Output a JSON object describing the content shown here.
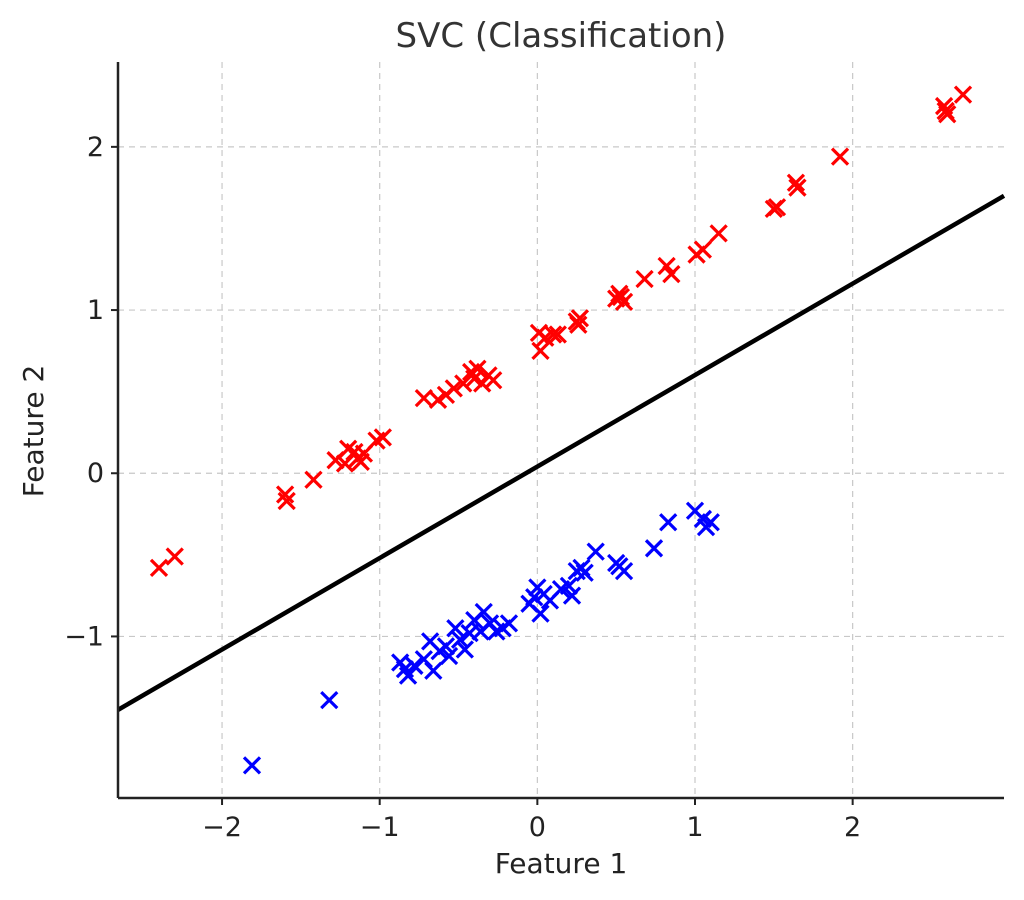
{
  "chart_data": {
    "type": "scatter",
    "title": "SVC (Classification)",
    "xlabel": "Feature 1",
    "ylabel": "Feature 2",
    "xlim": [
      -2.66,
      2.96
    ],
    "ylim": [
      -1.99,
      2.52
    ],
    "xticks": [
      -2,
      -1,
      0,
      1,
      2
    ],
    "yticks": [
      -1,
      0,
      1,
      2
    ],
    "xtick_labels": [
      "−2",
      "−1",
      "0",
      "1",
      "2"
    ],
    "ytick_labels": [
      "−1",
      "0",
      "1",
      "2"
    ],
    "grid": true,
    "marker": "x",
    "decision_boundary": {
      "x": [
        -2.66,
        2.96
      ],
      "y": [
        -1.45,
        1.7
      ],
      "color": "#000000"
    },
    "series": [
      {
        "color": "#ff0000",
        "points": [
          [
            -2.4,
            -0.58
          ],
          [
            -2.3,
            -0.51
          ],
          [
            -1.6,
            -0.13
          ],
          [
            -1.59,
            -0.17
          ],
          [
            -1.42,
            -0.04
          ],
          [
            -1.28,
            0.08
          ],
          [
            -1.22,
            0.06
          ],
          [
            -1.2,
            0.15
          ],
          [
            -1.16,
            0.13
          ],
          [
            -1.14,
            0.09
          ],
          [
            -1.12,
            0.07
          ],
          [
            -1.1,
            0.12
          ],
          [
            -1.02,
            0.2
          ],
          [
            -0.98,
            0.22
          ],
          [
            -0.72,
            0.46
          ],
          [
            -0.63,
            0.45
          ],
          [
            -0.58,
            0.48
          ],
          [
            -0.53,
            0.52
          ],
          [
            -0.47,
            0.55
          ],
          [
            -0.42,
            0.62
          ],
          [
            -0.38,
            0.64
          ],
          [
            -0.4,
            0.58
          ],
          [
            -0.35,
            0.55
          ],
          [
            -0.31,
            0.6
          ],
          [
            -0.28,
            0.57
          ],
          [
            0.01,
            0.86
          ],
          [
            0.02,
            0.75
          ],
          [
            0.05,
            0.83
          ],
          [
            0.1,
            0.85
          ],
          [
            0.13,
            0.85
          ],
          [
            0.25,
            0.93
          ],
          [
            0.27,
            0.95
          ],
          [
            0.26,
            0.91
          ],
          [
            0.5,
            1.07
          ],
          [
            0.52,
            1.1
          ],
          [
            0.55,
            1.05
          ],
          [
            0.53,
            1.08
          ],
          [
            0.68,
            1.19
          ],
          [
            0.82,
            1.27
          ],
          [
            0.85,
            1.22
          ],
          [
            1.01,
            1.34
          ],
          [
            1.05,
            1.37
          ],
          [
            1.15,
            1.47
          ],
          [
            1.5,
            1.62
          ],
          [
            1.52,
            1.63
          ],
          [
            1.64,
            1.78
          ],
          [
            1.65,
            1.75
          ],
          [
            1.92,
            1.94
          ],
          [
            2.58,
            2.25
          ],
          [
            2.6,
            2.2
          ],
          [
            2.59,
            2.22
          ],
          [
            2.7,
            2.32
          ]
        ]
      },
      {
        "color": "#0000ff",
        "points": [
          [
            -1.81,
            -1.79
          ],
          [
            -1.32,
            -1.39
          ],
          [
            -0.87,
            -1.16
          ],
          [
            -0.84,
            -1.2
          ],
          [
            -0.82,
            -1.24
          ],
          [
            -0.78,
            -1.18
          ],
          [
            -0.72,
            -1.14
          ],
          [
            -0.68,
            -1.03
          ],
          [
            -0.66,
            -1.21
          ],
          [
            -0.62,
            -1.09
          ],
          [
            -0.58,
            -1.06
          ],
          [
            -0.56,
            -1.12
          ],
          [
            -0.52,
            -0.95
          ],
          [
            -0.49,
            -1.02
          ],
          [
            -0.46,
            -1.08
          ],
          [
            -0.43,
            -0.98
          ],
          [
            -0.4,
            -0.9
          ],
          [
            -0.36,
            -0.97
          ],
          [
            -0.34,
            -0.85
          ],
          [
            -0.3,
            -0.92
          ],
          [
            -0.26,
            -0.97
          ],
          [
            -0.22,
            -0.95
          ],
          [
            -0.18,
            -0.92
          ],
          [
            -0.05,
            -0.8
          ],
          [
            -0.02,
            -0.76
          ],
          [
            0.0,
            -0.7
          ],
          [
            0.02,
            -0.86
          ],
          [
            0.04,
            -0.74
          ],
          [
            0.08,
            -0.78
          ],
          [
            0.15,
            -0.71
          ],
          [
            0.2,
            -0.69
          ],
          [
            0.22,
            -0.75
          ],
          [
            0.25,
            -0.6
          ],
          [
            0.28,
            -0.58
          ],
          [
            0.3,
            -0.61
          ],
          [
            0.37,
            -0.48
          ],
          [
            0.5,
            -0.55
          ],
          [
            0.52,
            -0.57
          ],
          [
            0.55,
            -0.6
          ],
          [
            0.74,
            -0.46
          ],
          [
            0.83,
            -0.3
          ],
          [
            1.0,
            -0.23
          ],
          [
            1.05,
            -0.28
          ],
          [
            1.07,
            -0.33
          ],
          [
            1.1,
            -0.3
          ]
        ]
      }
    ]
  }
}
